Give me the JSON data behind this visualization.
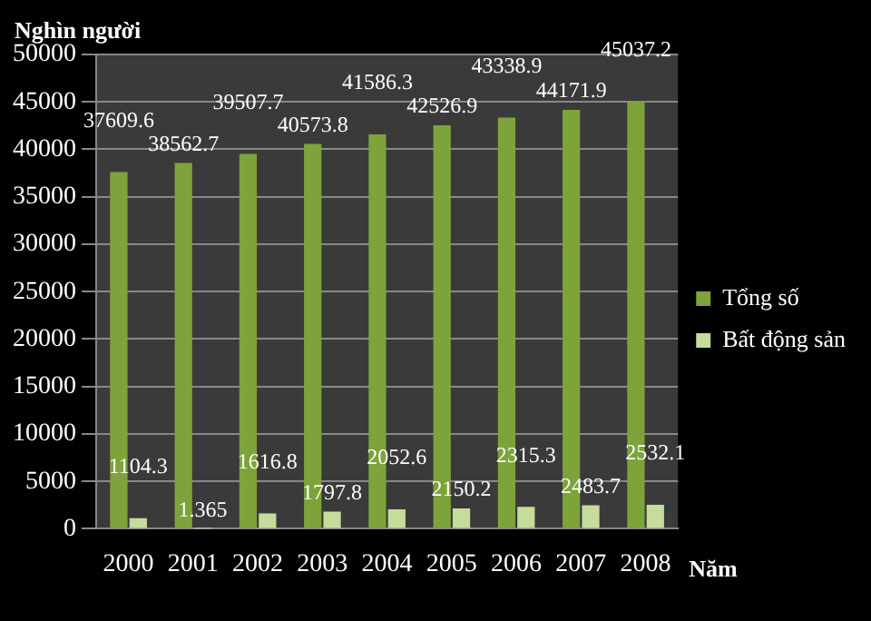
{
  "chart_data": {
    "type": "bar",
    "ylabel": "Nghìn người",
    "xlabel": "Năm",
    "categories": [
      "2000",
      "2001",
      "2002",
      "2003",
      "2004",
      "2005",
      "2006",
      "2007",
      "2008"
    ],
    "series": [
      {
        "name": "Tổng số",
        "color": "#7ea33a",
        "values": [
          37609.6,
          38562.7,
          39507.7,
          40573.8,
          41586.3,
          42526.9,
          43338.9,
          44171.9,
          45037.2
        ]
      },
      {
        "name": "Bất động sản",
        "color": "#c5dc9a",
        "values": [
          1104.3,
          1.365,
          1616.8,
          1797.8,
          2052.6,
          2150.2,
          2315.3,
          2483.7,
          2532.1
        ]
      }
    ],
    "ylim": [
      0,
      50000
    ],
    "yticks": [
      0,
      5000,
      10000,
      15000,
      20000,
      25000,
      30000,
      35000,
      40000,
      45000,
      50000
    ],
    "grid": "y",
    "legend": "right",
    "data_labels": true
  }
}
